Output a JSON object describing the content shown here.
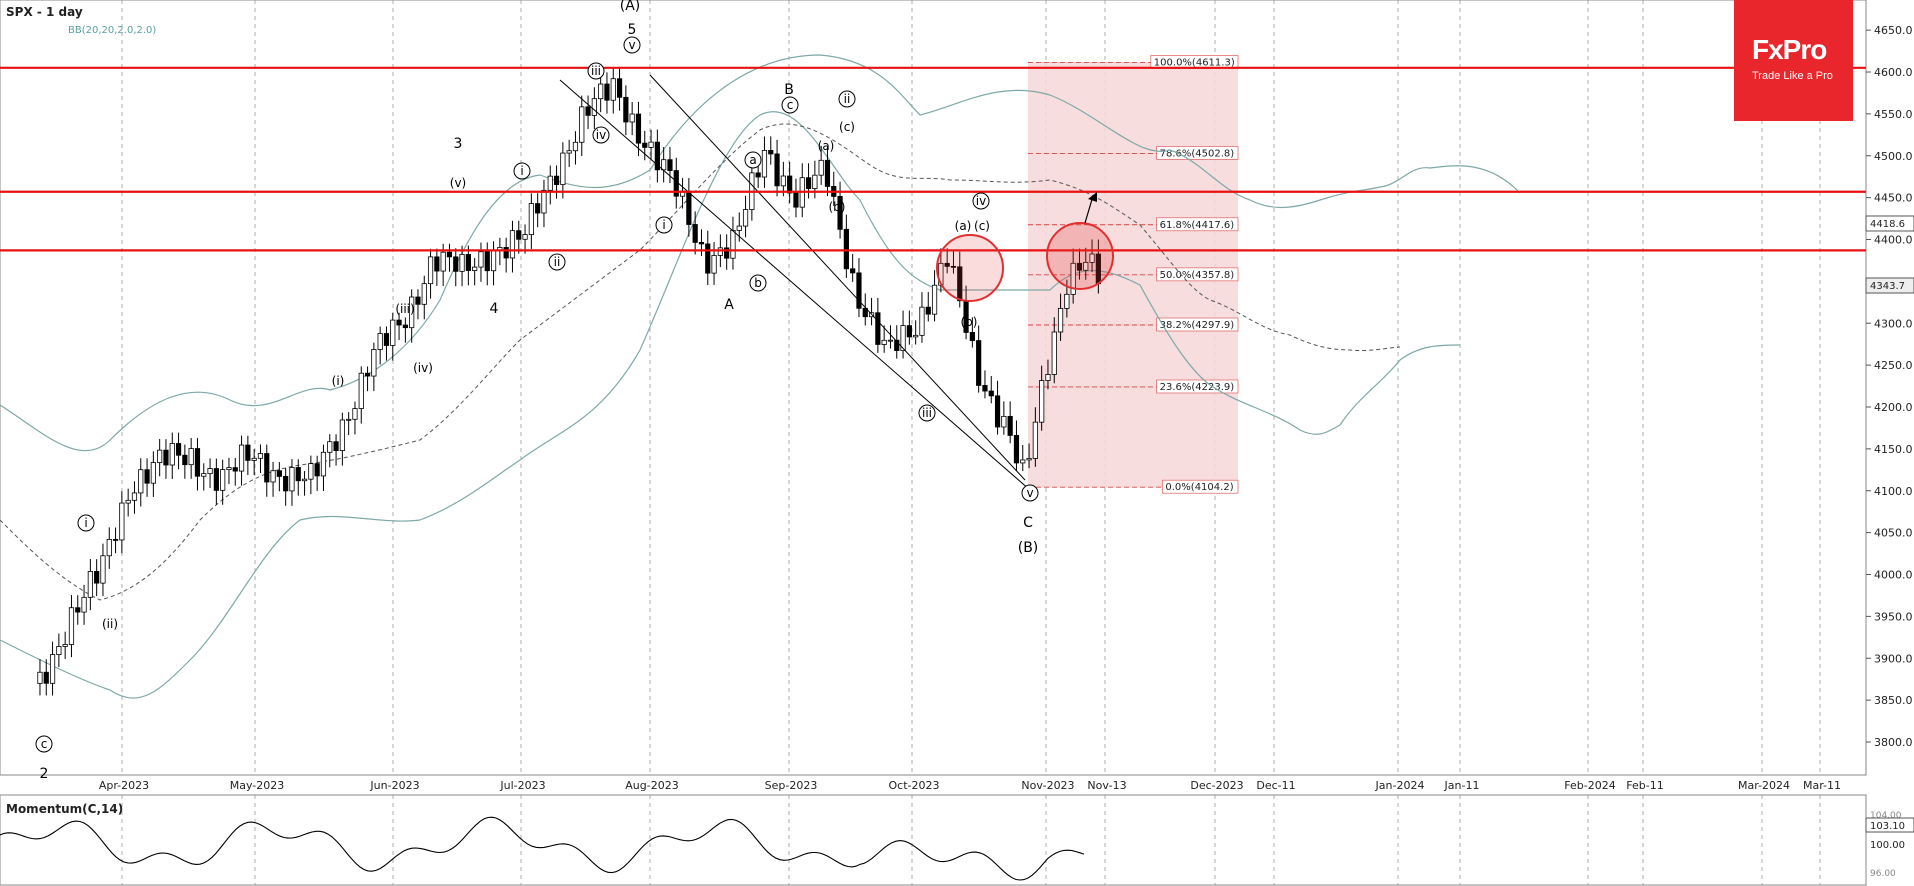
{
  "header": {
    "symbol_label": "SPX - 1 day",
    "indicator_label": "BB(20,20,2.0,2.0)"
  },
  "brand": {
    "name": "FxPro",
    "tagline": "Trade Like a Pro",
    "color": "#e8262b"
  },
  "momentum_panel": {
    "label": "Momentum(C,14)",
    "current_value": "103.10",
    "ticks": [
      "100.00",
      "96.00",
      "104.00"
    ]
  },
  "price_tags": {
    "bb_upper": "4418.6",
    "last": "4343.7"
  },
  "chart_data": {
    "type": "candlestick",
    "title": "SPX - 1 day",
    "y_ticks": [
      3800,
      3850,
      3900,
      3950,
      4000,
      4050,
      4100,
      4150,
      4200,
      4250,
      4300,
      4350,
      4400,
      4450,
      4500,
      4550,
      4600,
      4650
    ],
    "ylim": [
      3770,
      4690
    ],
    "x_ticks": [
      "Apr-2023",
      "May-2023",
      "Jun-2023",
      "Jul-2023",
      "Aug-2023",
      "Sep-2023",
      "Oct-2023",
      "Nov-2023",
      "Nov-13",
      "Dec-2023",
      "Dec-11",
      "Jan-2024",
      "Jan-11",
      "Feb-2024",
      "Feb-11",
      "Mar-2024",
      "Mar-11"
    ],
    "close_path": [
      [
        "2023-03-13",
        3870
      ],
      [
        "2023-03-20",
        3950
      ],
      [
        "2023-03-27",
        4000
      ],
      [
        "2023-04-03",
        4110
      ],
      [
        "2023-04-10",
        4135
      ],
      [
        "2023-04-17",
        4140
      ],
      [
        "2023-04-24",
        4115
      ],
      [
        "2023-05-01",
        4140
      ],
      [
        "2023-05-08",
        4120
      ],
      [
        "2023-05-15",
        4110
      ],
      [
        "2023-05-22",
        4180
      ],
      [
        "2023-05-29",
        4260
      ],
      [
        "2023-06-05",
        4300
      ],
      [
        "2023-06-12",
        4380
      ],
      [
        "2023-06-19",
        4360
      ],
      [
        "2023-06-26",
        4390
      ],
      [
        "2023-07-03",
        4400
      ],
      [
        "2023-07-10",
        4480
      ],
      [
        "2023-07-17",
        4550
      ],
      [
        "2023-07-24",
        4580
      ],
      [
        "2023-07-31",
        4520
      ],
      [
        "2023-08-07",
        4460
      ],
      [
        "2023-08-14",
        4380
      ],
      [
        "2023-08-21",
        4395
      ],
      [
        "2023-08-28",
        4510
      ],
      [
        "2023-09-04",
        4450
      ],
      [
        "2023-09-11",
        4480
      ],
      [
        "2023-09-18",
        4340
      ],
      [
        "2023-09-25",
        4260
      ],
      [
        "2023-10-02",
        4300
      ],
      [
        "2023-10-09",
        4380
      ],
      [
        "2023-10-16",
        4240
      ],
      [
        "2023-10-23",
        4180
      ],
      [
        "2023-10-27",
        4110
      ],
      [
        "2023-11-01",
        4240
      ],
      [
        "2023-11-06",
        4360
      ],
      [
        "2023-11-10",
        4380
      ],
      [
        "2023-11-14",
        4344
      ]
    ],
    "horizontal_levels": [
      4605,
      4457,
      4387
    ],
    "fibonacci": [
      {
        "label": "100.0%(4611.3)",
        "value": 4611.3
      },
      {
        "label": "78.6%(4502.8)",
        "value": 4502.8
      },
      {
        "label": "61.8%(4417.6)",
        "value": 4417.6
      },
      {
        "label": "50.0%(4357.8)",
        "value": 4357.8
      },
      {
        "label": "38.2%(4297.9)",
        "value": 4297.9
      },
      {
        "label": "23.6%(4223.9)",
        "value": 4223.9
      },
      {
        "label": "0.0%(4104.2)",
        "value": 4104.2
      }
    ],
    "wave_labels": [
      {
        "text": "(A)"
      },
      {
        "text": "5"
      },
      {
        "text": "3"
      },
      {
        "text": "4"
      },
      {
        "text": "2"
      },
      {
        "text": "A"
      },
      {
        "text": "B"
      },
      {
        "text": "C"
      },
      {
        "text": "(B)"
      },
      {
        "text": "v"
      },
      {
        "text": "iii"
      },
      {
        "text": "iv"
      },
      {
        "text": "ii"
      },
      {
        "text": "i"
      },
      {
        "text": "(iii)"
      },
      {
        "text": "(iv)"
      },
      {
        "text": "(v)"
      },
      {
        "text": "(i)"
      },
      {
        "text": "(ii)"
      },
      {
        "text": "(a)"
      },
      {
        "text": "(b)"
      },
      {
        "text": "(c)"
      },
      {
        "text": "a"
      },
      {
        "text": "b"
      },
      {
        "text": "c"
      }
    ]
  }
}
